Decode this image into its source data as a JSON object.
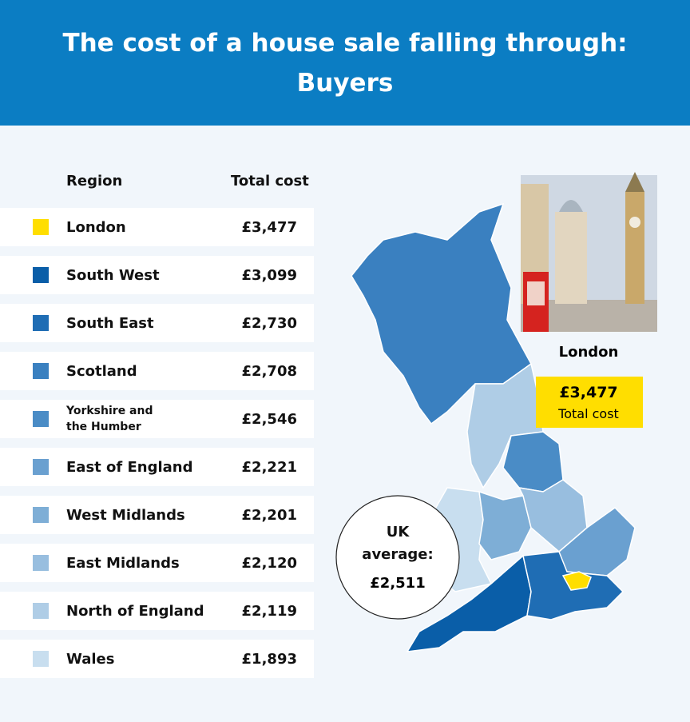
{
  "header": {
    "title": "The cost of a house sale falling through: Buyers"
  },
  "table": {
    "columns": [
      "Region",
      "Total cost"
    ],
    "rows": [
      {
        "region": "London",
        "cost": "£3,477",
        "color": "#ffde00"
      },
      {
        "region": "South West",
        "cost": "£3,099",
        "color": "#0a5ea8"
      },
      {
        "region": "South East",
        "cost": "£2,730",
        "color": "#1f6db4"
      },
      {
        "region": "Scotland",
        "cost": "£2,708",
        "color": "#3a80c0"
      },
      {
        "region": "Yorkshire and the Humber",
        "cost": "£2,546",
        "color": "#4a8cc6"
      },
      {
        "region": "East of England",
        "cost": "£2,221",
        "color": "#6aa0d0"
      },
      {
        "region": "West Midlands",
        "cost": "£2,201",
        "color": "#7eaed6"
      },
      {
        "region": "East Midlands",
        "cost": "£2,120",
        "color": "#98bedf"
      },
      {
        "region": "North of England",
        "cost": "£2,119",
        "color": "#afcde6"
      },
      {
        "region": "Wales",
        "cost": "£1,893",
        "color": "#c8deef"
      }
    ]
  },
  "callout": {
    "region": "London",
    "value": "£3,477",
    "label": "Total cost"
  },
  "uk_average": {
    "label": "UK average:",
    "value": "£2,511"
  }
}
